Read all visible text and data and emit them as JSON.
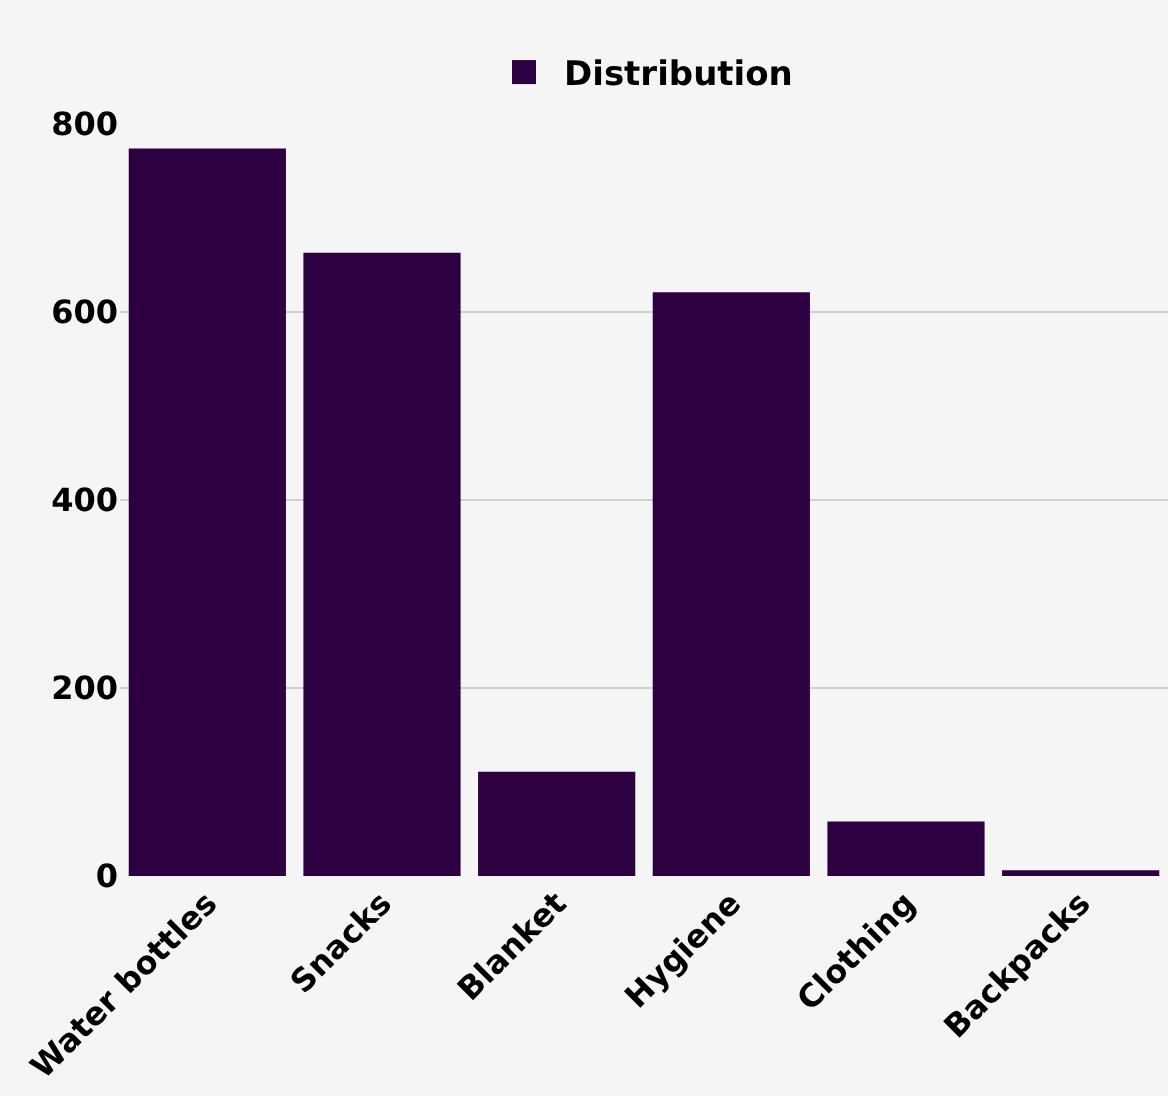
{
  "chart_data": {
    "type": "bar",
    "categories": [
      "Water bottles",
      "Snacks",
      "Blanket",
      "Hygiene",
      "Clothing",
      "Backpacks"
    ],
    "series": [
      {
        "name": "Distribution",
        "color": "#2d0042",
        "values": [
          774,
          663,
          111,
          621,
          58,
          6
        ]
      }
    ],
    "ylim": [
      0,
      800
    ],
    "yticks": [
      0,
      200,
      400,
      600,
      800
    ],
    "grid": "y",
    "legend": "top"
  }
}
